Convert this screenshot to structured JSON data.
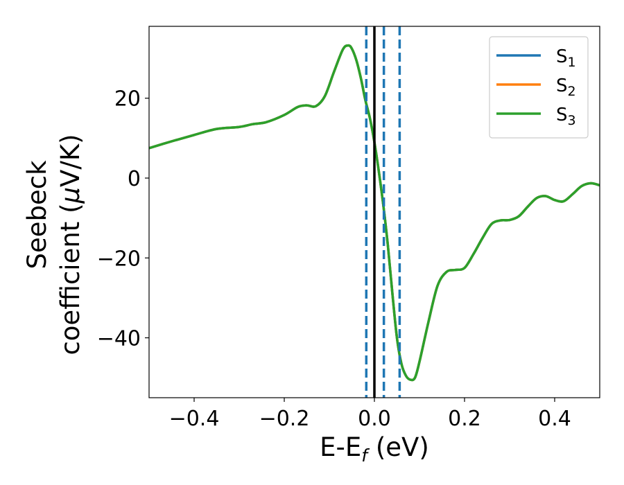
{
  "chart_data": {
    "type": "line",
    "xlabel": "E-E",
    "xlabel_sub": "f",
    "xlabel_unit": " (eV)",
    "ylabel_line1": "Seebeck",
    "ylabel_line2": "coefficient  (",
    "ylabel_mu": "μ",
    "ylabel_unit": "V/K)",
    "xlim": [
      -0.5,
      0.5
    ],
    "ylim": [
      -55,
      38
    ],
    "xticks": [
      -0.4,
      -0.2,
      0.0,
      0.2,
      0.4
    ],
    "xtick_labels": [
      "−0.4",
      "−0.2",
      "0.0",
      "0.2",
      "0.4"
    ],
    "yticks": [
      -40,
      -20,
      0,
      20
    ],
    "ytick_labels": [
      "−40",
      "−20",
      "0",
      "20"
    ],
    "grid": false,
    "legend_position": "top-right",
    "series": [
      {
        "name": "S",
        "sub": "1",
        "color": "#1f77b4"
      },
      {
        "name": "S",
        "sub": "2",
        "color": "#ff7f0e"
      },
      {
        "name": "S",
        "sub": "3",
        "color": "#2ca02c"
      }
    ],
    "curve": {
      "x": [
        -0.5,
        -0.45,
        -0.4,
        -0.35,
        -0.3,
        -0.27,
        -0.24,
        -0.2,
        -0.17,
        -0.15,
        -0.13,
        -0.11,
        -0.09,
        -0.07,
        -0.058,
        -0.05,
        -0.04,
        -0.03,
        -0.02,
        -0.01,
        0.0,
        0.01,
        0.02,
        0.03,
        0.04,
        0.05,
        0.06,
        0.07,
        0.08,
        0.09,
        0.1,
        0.12,
        0.14,
        0.16,
        0.18,
        0.2,
        0.22,
        0.24,
        0.26,
        0.28,
        0.3,
        0.32,
        0.34,
        0.36,
        0.38,
        0.4,
        0.42,
        0.44,
        0.46,
        0.48,
        0.5
      ],
      "y": [
        7.5,
        9.2,
        10.8,
        12.3,
        12.8,
        13.5,
        14.0,
        15.8,
        17.8,
        18.2,
        18.0,
        20.5,
        26.5,
        32.2,
        33.2,
        32.4,
        29.5,
        25.0,
        19.5,
        15.0,
        9.0,
        1.5,
        -7.0,
        -17.0,
        -29.0,
        -40.0,
        -46.5,
        -49.5,
        -50.5,
        -50.0,
        -46.0,
        -36.0,
        -27.0,
        -23.5,
        -23.0,
        -22.5,
        -19.0,
        -15.0,
        -11.5,
        -10.6,
        -10.5,
        -9.6,
        -7.2,
        -5.0,
        -4.5,
        -5.5,
        -5.8,
        -4.0,
        -2.0,
        -1.3,
        -1.8
      ]
    },
    "vlines": [
      {
        "x": -0.018,
        "style": "dashed",
        "color": "#1f77b4"
      },
      {
        "x": 0.0,
        "style": "solid",
        "color": "#000000"
      },
      {
        "x": 0.021,
        "style": "dashed",
        "color": "#1f77b4"
      },
      {
        "x": 0.056,
        "style": "dashed",
        "color": "#1f77b4"
      }
    ]
  }
}
